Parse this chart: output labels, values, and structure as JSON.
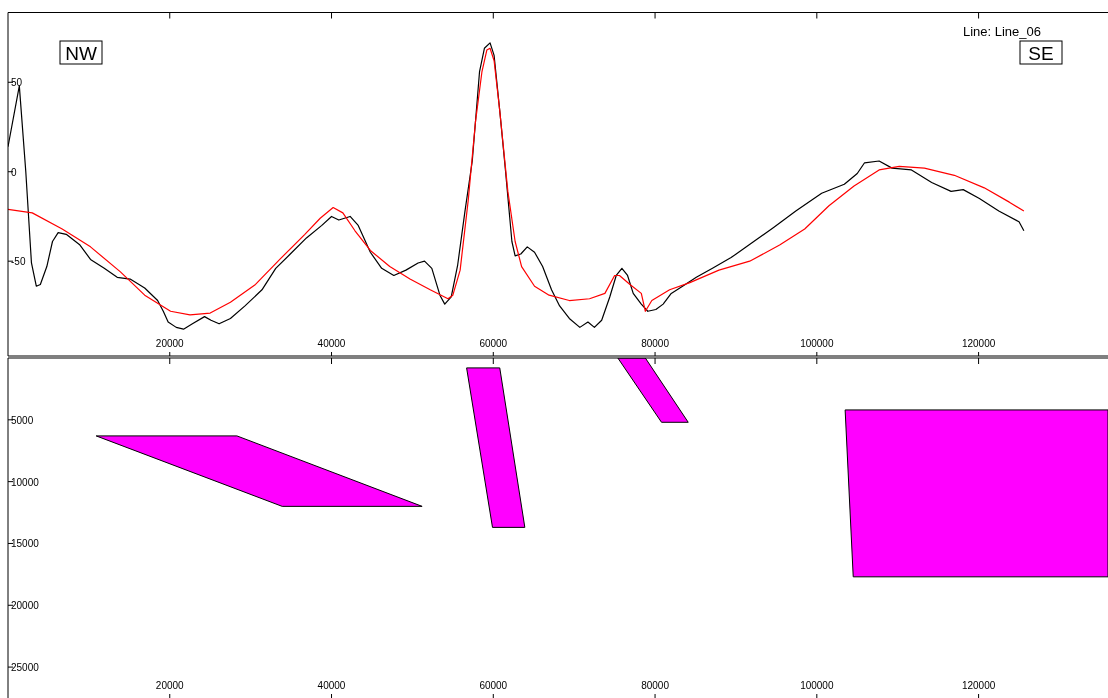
{
  "chart_data": [
    {
      "type": "line",
      "xlim": [
        0,
        136000
      ],
      "ylim": [
        -103,
        89
      ],
      "xticks": [
        20000,
        40000,
        60000,
        80000,
        100000,
        120000
      ],
      "yticks": [
        -50,
        0,
        50
      ],
      "annotations": [
        "NW",
        "SE",
        "Line: Line_06"
      ],
      "series": [
        {
          "color": "#000000",
          "x": [
            0,
            1400,
            2200,
            2900,
            3500,
            4000,
            4800,
            5500,
            6200,
            7200,
            8900,
            10200,
            11900,
            13500,
            15100,
            16900,
            18500,
            19200,
            19800,
            20800,
            21700,
            22800,
            24300,
            25100,
            26100,
            27500,
            29300,
            31400,
            33100,
            34900,
            36900,
            38800,
            40000,
            40900,
            42300,
            43300,
            44800,
            46200,
            47700,
            49200,
            50700,
            51500,
            52400,
            53400,
            54000,
            54800,
            55600,
            56500,
            57400,
            58300,
            58900,
            59600,
            60100,
            60800,
            61500,
            62300,
            62700,
            63400,
            64200,
            65100,
            66100,
            67200,
            68200,
            69400,
            70700,
            71700,
            72500,
            73400,
            74400,
            75200,
            75900,
            76600,
            77300,
            78300,
            79100,
            80100,
            81000,
            82000,
            83400,
            85100,
            87100,
            89400,
            91900,
            94700,
            97400,
            100600,
            103400,
            105000,
            105900,
            107700,
            109300,
            111700,
            114200,
            116600,
            118100,
            120100,
            122500,
            125000,
            125600
          ],
          "values": [
            14,
            48,
            0,
            -51,
            -64,
            -63,
            -53,
            -39,
            -34,
            -35,
            -41,
            -49,
            -54,
            -59,
            -60,
            -65,
            -72,
            -78,
            -84,
            -87,
            -88,
            -85,
            -81,
            -83,
            -85,
            -82,
            -75,
            -66,
            -54,
            -46,
            -37,
            -30,
            -25,
            -27,
            -25,
            -30,
            -45,
            -54,
            -58,
            -55,
            -51,
            -50,
            -54,
            -69,
            -74,
            -70,
            -52,
            -22,
            6,
            56,
            69,
            72,
            65,
            34,
            1,
            -39,
            -47,
            -46,
            -42,
            -45,
            -53,
            -66,
            -75,
            -82,
            -87,
            -84,
            -87,
            -83,
            -70,
            -58,
            -54,
            -58,
            -68,
            -74,
            -78,
            -77,
            -74,
            -68,
            -64,
            -59,
            -54,
            -48,
            -40,
            -31,
            -22,
            -12,
            -7,
            -1,
            5,
            6,
            2,
            1,
            -6,
            -11,
            -10,
            -15,
            -22,
            -28,
            -33
          ]
        },
        {
          "color": "#ff0000",
          "x": [
            0,
            3000,
            6700,
            10200,
            13900,
            16900,
            20100,
            22500,
            25000,
            27500,
            30600,
            33600,
            36700,
            38600,
            40200,
            41400,
            42900,
            44800,
            47200,
            49700,
            52200,
            54400,
            55000,
            55900,
            56900,
            57800,
            58600,
            59200,
            59600,
            60100,
            60800,
            61800,
            62700,
            63500,
            65100,
            66900,
            69400,
            71900,
            73800,
            75000,
            75600,
            76900,
            78300,
            78800,
            79600,
            81800,
            84300,
            87900,
            91700,
            95400,
            98500,
            101500,
            104600,
            107700,
            110200,
            113300,
            117000,
            120700,
            123800,
            125600
          ],
          "values": [
            -21,
            -23,
            -32,
            -42,
            -56,
            -69,
            -78,
            -80,
            -79,
            -73,
            -63,
            -49,
            -35,
            -26,
            -20,
            -23,
            -33,
            -44,
            -53,
            -60,
            -66,
            -71,
            -69,
            -55,
            -16,
            28,
            56,
            68,
            69,
            62,
            34,
            -11,
            -39,
            -53,
            -64,
            -69,
            -72,
            -71,
            -68,
            -58,
            -58,
            -63,
            -68,
            -78,
            -72,
            -66,
            -62,
            -55,
            -50,
            -41,
            -32,
            -19,
            -8,
            1,
            3,
            2,
            -2,
            -9,
            -17,
            -22
          ]
        }
      ]
    },
    {
      "type": "area",
      "xlim": [
        0,
        136000
      ],
      "ylim": [
        27500,
        0
      ],
      "xticks": [
        20000,
        40000,
        60000,
        80000,
        100000,
        120000
      ],
      "yticks": [
        5000,
        10000,
        15000,
        20000,
        25000
      ],
      "series": [
        {
          "color": "#ff00ff",
          "x": [
            10900,
            28300,
            51200,
            33900
          ],
          "values": [
            6300,
            6300,
            12000,
            12000
          ]
        },
        {
          "color": "#ff00ff",
          "x": [
            56700,
            60800,
            63900,
            59900
          ],
          "values": [
            800,
            800,
            13700,
            13700
          ]
        },
        {
          "color": "#ff00ff",
          "x": [
            75400,
            78800,
            84100,
            80800
          ],
          "values": [
            0,
            0,
            5200,
            5200
          ]
        },
        {
          "color": "#ff00ff",
          "x": [
            103500,
            136000,
            136000,
            104500
          ],
          "values": [
            4200,
            4200,
            17700,
            17700
          ]
        }
      ]
    }
  ]
}
